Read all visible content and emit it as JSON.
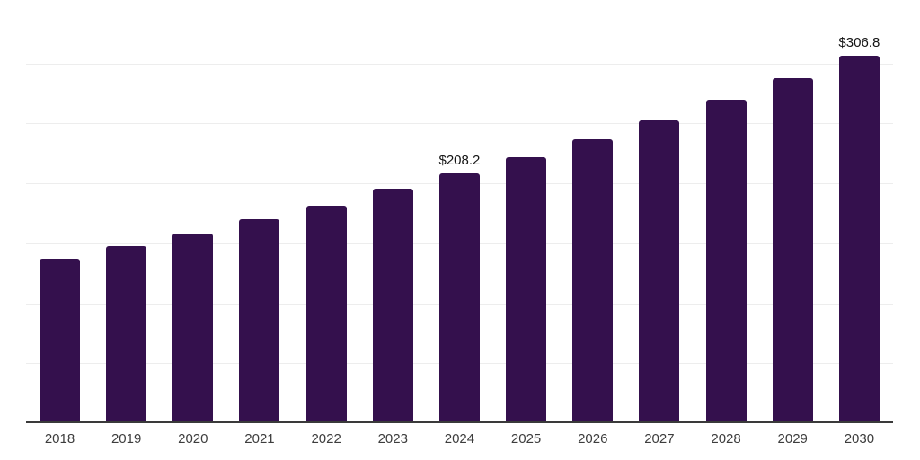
{
  "chart": {
    "background_color": "#ffffff",
    "bar_color": "#34104d",
    "grid_color": "#ededed",
    "axis_color": "#3a3a3a",
    "tick_label_color": "#3d3d3d",
    "value_label_color": "#141414"
  },
  "chart_data": {
    "type": "bar",
    "title": "",
    "xlabel": "",
    "ylabel": "",
    "categories": [
      "2018",
      "2019",
      "2020",
      "2021",
      "2022",
      "2023",
      "2024",
      "2025",
      "2026",
      "2027",
      "2028",
      "2029",
      "2030"
    ],
    "values": [
      137.5,
      147.5,
      158.5,
      170.0,
      181.7,
      195.3,
      208.2,
      222.2,
      237.0,
      252.8,
      269.7,
      287.7,
      306.8
    ],
    "point_labels": [
      "",
      "",
      "",
      "",
      "",
      "",
      "$208.2",
      "",
      "",
      "",
      "",
      "",
      "$306.8"
    ],
    "value_prefix": "$",
    "ylim": [
      0,
      350
    ],
    "grid_interval": 50,
    "grid": "horizontal",
    "gridline_count_above_axis": 7,
    "legend": "none",
    "y_axis_tick_labels_visible": false
  }
}
